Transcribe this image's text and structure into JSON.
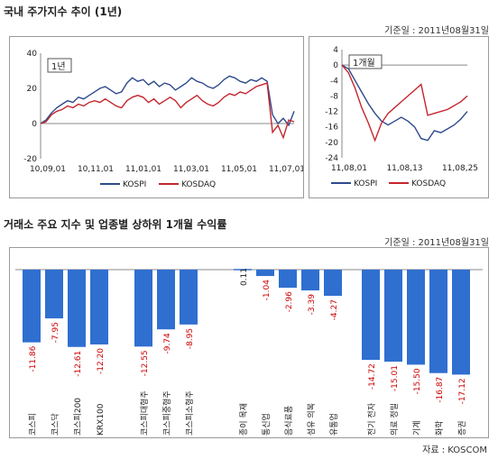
{
  "section1": {
    "title": "국내 주가지수 추이 (1년)",
    "ref_date": "기준일 : 2011년08월31일"
  },
  "section2": {
    "title": "거래소 주요 지수 및 업종별 상하위 1개월 수익률",
    "ref_date": "기준일 : 2011년08월31일"
  },
  "source": "자료 : KOSCOM",
  "colors": {
    "kospi": "#2e4a8c",
    "kosdaq": "#c4262e",
    "bar": "#2f6fd0",
    "neg_label": "#cc0000"
  },
  "chart_data": [
    {
      "type": "line",
      "panel_label": "1년",
      "ylim": [
        -20,
        40
      ],
      "y_ticks": [
        -20,
        0,
        20,
        40
      ],
      "x_ticks": [
        "10,09,01",
        "10,11,01",
        "11,01,01",
        "11,03,01",
        "11,05,01",
        "11,07,01"
      ],
      "grid": false,
      "legend": "bottom",
      "series": [
        {
          "name": "KOSPI",
          "values": [
            0,
            2,
            6,
            9,
            11,
            13,
            12,
            15,
            14,
            16,
            18,
            20,
            21,
            19,
            17,
            18,
            23,
            26,
            24,
            25,
            22,
            24,
            21,
            23,
            22,
            19,
            21,
            23,
            26,
            24,
            23,
            21,
            20,
            22,
            25,
            27,
            26,
            24,
            23,
            25,
            24,
            26,
            24,
            5,
            0,
            3,
            -1,
            7
          ]
        },
        {
          "name": "KOSDAQ",
          "values": [
            0,
            1,
            5,
            7,
            8,
            10,
            9,
            11,
            10,
            12,
            13,
            12,
            14,
            12,
            10,
            9,
            13,
            15,
            16,
            15,
            12,
            14,
            11,
            13,
            15,
            13,
            9,
            12,
            14,
            16,
            13,
            11,
            10,
            12,
            15,
            17,
            16,
            18,
            17,
            19,
            21,
            22,
            23,
            -5,
            -1,
            -8,
            2,
            1
          ]
        }
      ]
    },
    {
      "type": "line",
      "panel_label": "1개월",
      "ylim": [
        -24,
        4
      ],
      "y_ticks": [
        4,
        0,
        -4,
        -8,
        -12,
        -16,
        -20,
        -24
      ],
      "x_ticks": [
        "11,08,01",
        "11,08,13",
        "11,08,25"
      ],
      "grid": false,
      "legend": "bottom",
      "series": [
        {
          "name": "KOSPI",
          "values": [
            0,
            -1,
            -4,
            -7,
            -10,
            -12.5,
            -14.5,
            -15.5,
            -14.5,
            -13.5,
            -14.5,
            -16,
            -19,
            -19.5,
            -17,
            -17.5,
            -16.5,
            -15.5,
            -14,
            -12
          ]
        },
        {
          "name": "KOSDAQ",
          "values": [
            0,
            -2,
            -6,
            -11,
            -15,
            -19.5,
            -15,
            -12.5,
            -11,
            -9.5,
            -8,
            -6.5,
            -5,
            -13,
            -12.5,
            -12,
            -11.5,
            -10.5,
            -9.5,
            -8
          ]
        }
      ]
    },
    {
      "type": "bar",
      "groups": [
        {
          "categories": [
            "코스피",
            "코스닥",
            "코스피200",
            "KRX100"
          ],
          "values": [
            -11.86,
            -7.95,
            -12.61,
            -12.2
          ],
          "labels": [
            "-11.86",
            "-7.95",
            "-12.61",
            "-12.20"
          ]
        },
        {
          "categories": [
            "코스피대형주",
            "코스피중형주",
            "코스피소형주"
          ],
          "values": [
            -12.55,
            -9.74,
            -8.95
          ],
          "labels": [
            "-12.55",
            "-9.74",
            "-8.95"
          ]
        },
        {
          "categories": [
            "종이 목재",
            "통신업",
            "음식료품",
            "섬유 의복",
            "유통업"
          ],
          "values": [
            0.11,
            -1.04,
            -2.96,
            -3.39,
            -4.27
          ],
          "labels": [
            "0.11",
            "-1.04",
            "-2.96",
            "-3.39",
            "-4.27"
          ]
        },
        {
          "categories": [
            "전기 전자",
            "의료 정밀",
            "기계",
            "화학",
            "증권"
          ],
          "values": [
            -14.72,
            -15.01,
            -15.5,
            -16.87,
            -17.12
          ],
          "labels": [
            "-14.72",
            "-15.01",
            "-15.50",
            "-16.87",
            "-17.12"
          ]
        }
      ]
    }
  ]
}
